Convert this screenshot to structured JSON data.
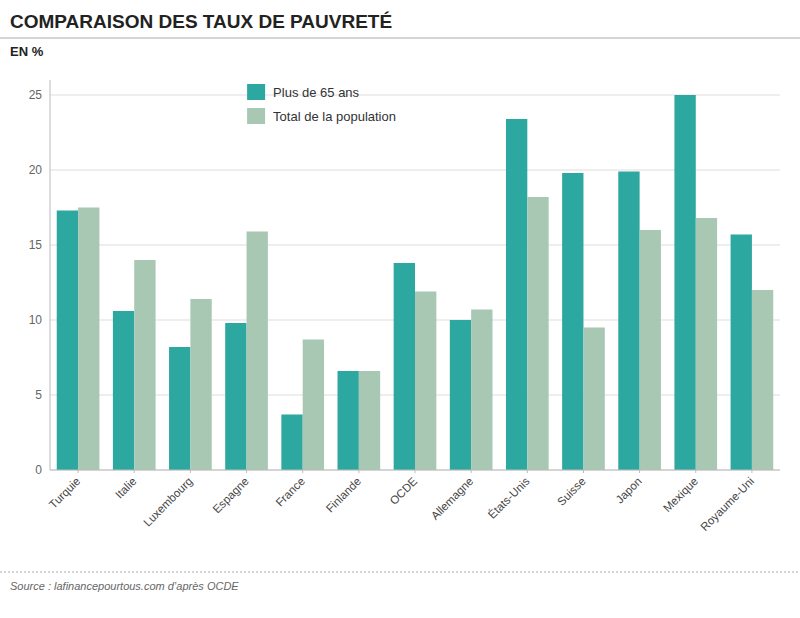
{
  "chart_data": {
    "type": "bar",
    "title": "COMPARAISON DES TAUX DE PAUVRETÉ",
    "ylabel": "EN %",
    "annotations": [
      "Source : lafinancepourtous.com d’après OCDE"
    ],
    "categories": [
      "Turquie",
      "Italie",
      "Luxembourg",
      "Espagne",
      "France",
      "Finlande",
      "OCDE",
      "Allemagne",
      "États-Unis",
      "Suisse",
      "Japon",
      "Mexique",
      "Royaume-Uni"
    ],
    "series": [
      {
        "name": "Plus de 65 ans",
        "color": "#2DA8A0",
        "values": [
          17.3,
          10.6,
          8.2,
          9.8,
          3.7,
          6.6,
          13.8,
          10.0,
          23.4,
          19.8,
          19.9,
          25.0,
          15.7
        ]
      },
      {
        "name": "Total de la population",
        "color": "#A8C8B4",
        "values": [
          17.5,
          14.0,
          11.4,
          15.9,
          8.7,
          6.6,
          11.9,
          10.7,
          18.2,
          9.5,
          16.0,
          16.8,
          12.0
        ]
      }
    ],
    "ylim": [
      0,
      26
    ],
    "yticks": [
      0,
      5,
      10,
      15,
      20,
      25
    ],
    "grid": true,
    "legend": "upper left"
  }
}
